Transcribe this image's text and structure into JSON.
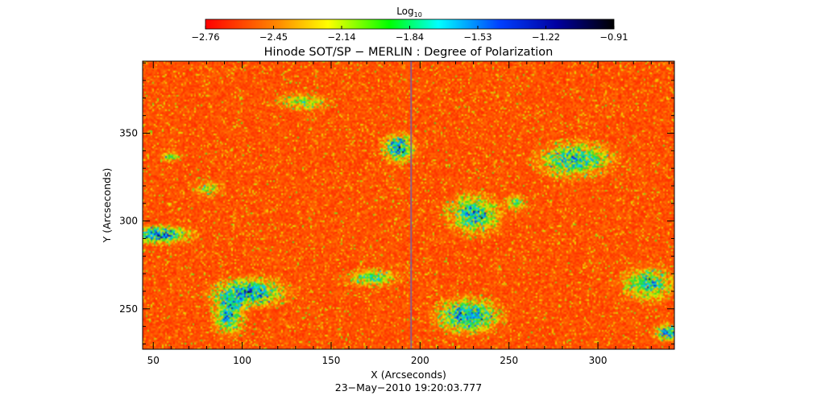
{
  "chart_data": {
    "type": "heatmap",
    "title": "Hinode SOT/SP − MERLIN : Degree of Polarization",
    "subtitle": "23−May−2010 19:20:03.777",
    "xlabel": "X (Arcseconds)",
    "ylabel": "Y (Arcseconds)",
    "xlim": [
      44,
      343
    ],
    "ylim": [
      227,
      391
    ],
    "x_ticks": [
      50,
      100,
      150,
      200,
      250,
      300
    ],
    "y_ticks": [
      250,
      300,
      350
    ],
    "colorbar": {
      "label_base": "Log",
      "label_sub": "10",
      "ticks": [
        "−2.76",
        "−2.45",
        "−2.14",
        "−1.84",
        "−1.53",
        "−1.22",
        "−0.91"
      ],
      "range": [
        -2.76,
        -0.91
      ],
      "colormap": "rainbow (red → yellow → green → cyan → blue → black)"
    },
    "grid": false,
    "seam_x": 195,
    "colors": {
      "high_pol": "#000090",
      "mid_pol": "#00c8ff",
      "low_pol": "#ff2a00",
      "seam": "#7a5aa0"
    }
  }
}
